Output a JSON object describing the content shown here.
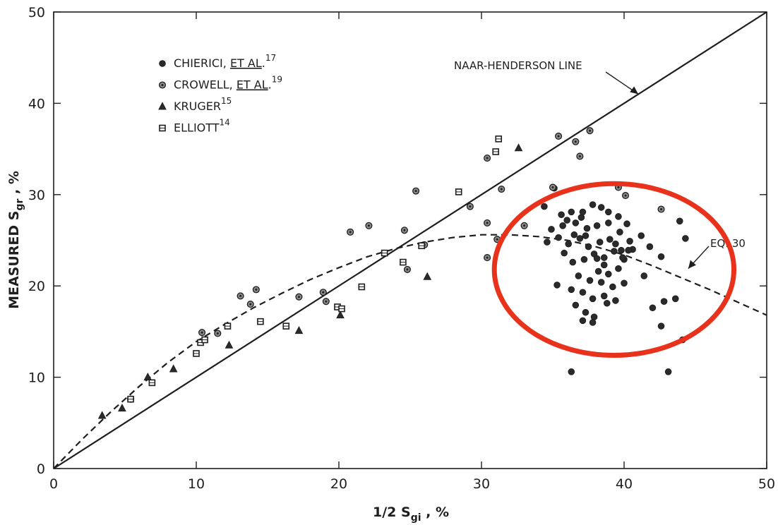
{
  "chart_data": {
    "type": "scatter",
    "xlabel": "1/2 S",
    "xlabel_sub": "gi",
    "xlabel_suffix": " , %",
    "ylabel": "MEASURED S",
    "ylabel_sub": "gr",
    "ylabel_suffix": " , %",
    "xlim": [
      0,
      50
    ],
    "ylim": [
      0,
      50
    ],
    "xticks": [
      0,
      10,
      20,
      30,
      40,
      50
    ],
    "yticks": [
      0,
      10,
      20,
      30,
      40,
      50
    ],
    "xtick_labels": [
      "0",
      "10",
      "20",
      "30",
      "40",
      "50"
    ],
    "ytick_labels": [
      "0",
      "10",
      "20",
      "30",
      "40",
      "50"
    ],
    "grid": false,
    "legend_position": "top-left",
    "legend": [
      {
        "marker": "filled-circle",
        "label": "CHIERICI, ",
        "underlined": "ET AL",
        "suffix": ".",
        "sup": "17"
      },
      {
        "marker": "ringed-circle",
        "label": "CROWELL, ",
        "underlined": "ET AL",
        "suffix": ".",
        "sup": "19"
      },
      {
        "marker": "triangle",
        "label": "KRUGER",
        "underlined": "",
        "suffix": "",
        "sup": "15"
      },
      {
        "marker": "square",
        "label": "ELLIOTT",
        "underlined": "",
        "suffix": "",
        "sup": "14"
      }
    ],
    "lines": [
      {
        "name": "NAAR-HENDERSON LINE",
        "style": "solid",
        "x": [
          0,
          50
        ],
        "y": [
          0,
          50
        ]
      },
      {
        "name": "EQ. 30",
        "style": "dashed",
        "x": [
          0,
          2,
          4,
          6,
          8,
          10,
          12,
          14,
          16,
          18,
          20,
          22,
          24,
          26,
          28,
          30,
          32,
          34,
          36,
          38,
          40,
          42,
          44,
          46,
          48,
          50
        ],
        "y": [
          0,
          3.2,
          6.2,
          9.0,
          11.6,
          13.9,
          15.8,
          17.6,
          19.2,
          20.7,
          22.0,
          23.2,
          24.1,
          24.8,
          25.3,
          25.6,
          25.6,
          25.4,
          25.0,
          24.3,
          23.4,
          22.2,
          20.9,
          19.6,
          18.2,
          16.8
        ]
      }
    ],
    "series": [
      {
        "name": "CHIERICI, ET AL.",
        "marker": "filled-circle",
        "points": [
          [
            34.4,
            28.7
          ],
          [
            35.6,
            27.8
          ],
          [
            36.3,
            28.1
          ],
          [
            37.0,
            27.5
          ],
          [
            37.8,
            28.9
          ],
          [
            38.4,
            28.6
          ],
          [
            38.9,
            28.1
          ],
          [
            39.6,
            27.6
          ],
          [
            40.2,
            26.8
          ],
          [
            41.2,
            25.5
          ],
          [
            34.9,
            26.2
          ],
          [
            35.7,
            26.6
          ],
          [
            36.6,
            26.9
          ],
          [
            37.4,
            26.3
          ],
          [
            38.1,
            26.6
          ],
          [
            38.9,
            26.9
          ],
          [
            39.7,
            25.9
          ],
          [
            40.4,
            24.9
          ],
          [
            41.8,
            24.3
          ],
          [
            34.6,
            24.8
          ],
          [
            35.4,
            25.3
          ],
          [
            36.1,
            24.6
          ],
          [
            36.9,
            25.2
          ],
          [
            37.5,
            24.3
          ],
          [
            38.3,
            24.8
          ],
          [
            39.0,
            25.1
          ],
          [
            39.8,
            23.9
          ],
          [
            40.6,
            24.0
          ],
          [
            42.6,
            23.2
          ],
          [
            35.8,
            23.6
          ],
          [
            36.4,
            22.6
          ],
          [
            37.2,
            22.9
          ],
          [
            37.9,
            23.5
          ],
          [
            38.6,
            22.3
          ],
          [
            39.3,
            23.8
          ],
          [
            40.0,
            22.9
          ],
          [
            38.2,
            21.6
          ],
          [
            38.9,
            21.3
          ],
          [
            39.6,
            21.9
          ],
          [
            36.8,
            21.1
          ],
          [
            37.6,
            20.6
          ],
          [
            38.4,
            20.4
          ],
          [
            39.2,
            19.9
          ],
          [
            40.0,
            20.3
          ],
          [
            41.4,
            21.1
          ],
          [
            36.3,
            19.6
          ],
          [
            37.1,
            19.3
          ],
          [
            37.8,
            18.6
          ],
          [
            38.6,
            18.9
          ],
          [
            39.4,
            18.4
          ],
          [
            36.6,
            17.9
          ],
          [
            37.3,
            17.1
          ],
          [
            37.9,
            16.6
          ],
          [
            38.8,
            18.1
          ],
          [
            42.0,
            17.6
          ],
          [
            42.8,
            18.3
          ],
          [
            43.6,
            18.6
          ],
          [
            37.1,
            16.2
          ],
          [
            37.8,
            16.0
          ],
          [
            42.6,
            15.6
          ],
          [
            44.1,
            14.1
          ],
          [
            36.3,
            10.6
          ],
          [
            43.1,
            10.6
          ],
          [
            35.3,
            20.1
          ],
          [
            39.9,
            23.1
          ],
          [
            40.3,
            23.9
          ],
          [
            36.0,
            27.2
          ],
          [
            37.1,
            28.1
          ],
          [
            35.1,
            30.7
          ],
          [
            43.9,
            27.1
          ],
          [
            44.3,
            25.2
          ],
          [
            36.5,
            25.6
          ],
          [
            38.6,
            23.1
          ],
          [
            37.3,
            25.5
          ],
          [
            38.1,
            23.0
          ],
          [
            39.4,
            24.6
          ]
        ]
      },
      {
        "name": "CROWELL, ET AL.",
        "marker": "ringed-circle",
        "points": [
          [
            5.4,
            7.6
          ],
          [
            10.4,
            14.9
          ],
          [
            11.5,
            14.8
          ],
          [
            13.1,
            18.9
          ],
          [
            13.8,
            18.0
          ],
          [
            14.2,
            19.6
          ],
          [
            17.2,
            18.8
          ],
          [
            18.9,
            19.3
          ],
          [
            19.1,
            18.3
          ],
          [
            20.8,
            25.9
          ],
          [
            22.1,
            26.6
          ],
          [
            24.6,
            26.1
          ],
          [
            24.8,
            21.8
          ],
          [
            25.4,
            30.4
          ],
          [
            26.0,
            24.5
          ],
          [
            29.2,
            28.7
          ],
          [
            30.4,
            34.0
          ],
          [
            30.4,
            26.9
          ],
          [
            30.4,
            23.1
          ],
          [
            31.4,
            30.6
          ],
          [
            35.4,
            36.4
          ],
          [
            36.6,
            35.8
          ],
          [
            37.6,
            37.0
          ],
          [
            36.9,
            34.2
          ],
          [
            39.6,
            30.8
          ],
          [
            40.1,
            29.9
          ],
          [
            42.6,
            28.4
          ],
          [
            35.0,
            30.8
          ],
          [
            33.0,
            26.6
          ],
          [
            31.1,
            25.1
          ]
        ]
      },
      {
        "name": "KRUGER",
        "marker": "triangle",
        "points": [
          [
            3.4,
            5.8
          ],
          [
            4.8,
            6.6
          ],
          [
            6.6,
            10.0
          ],
          [
            8.4,
            10.9
          ],
          [
            12.3,
            13.5
          ],
          [
            17.2,
            15.1
          ],
          [
            20.1,
            16.8
          ],
          [
            26.2,
            21.0
          ],
          [
            32.6,
            35.1
          ]
        ]
      },
      {
        "name": "ELLIOTT",
        "marker": "square",
        "points": [
          [
            5.4,
            7.6
          ],
          [
            6.9,
            9.4
          ],
          [
            10.0,
            12.6
          ],
          [
            10.3,
            13.8
          ],
          [
            10.6,
            14.1
          ],
          [
            12.2,
            15.6
          ],
          [
            14.5,
            16.1
          ],
          [
            16.3,
            15.6
          ],
          [
            19.9,
            17.7
          ],
          [
            20.2,
            17.5
          ],
          [
            21.6,
            19.9
          ],
          [
            23.2,
            23.6
          ],
          [
            24.5,
            22.6
          ],
          [
            25.8,
            24.4
          ],
          [
            28.4,
            30.3
          ],
          [
            31.0,
            34.7
          ],
          [
            31.2,
            36.1
          ]
        ]
      }
    ],
    "annotations": [
      {
        "text": "NAAR-HENDERSON LINE",
        "target": [
          41,
          41
        ]
      },
      {
        "text": "EQ. 30",
        "target": [
          44.5,
          21.9
        ]
      }
    ],
    "highlight": {
      "shape": "ellipse",
      "color": "#e8321c",
      "center": [
        39.3,
        21.8
      ],
      "radii": [
        8.4,
        9.4
      ]
    }
  }
}
